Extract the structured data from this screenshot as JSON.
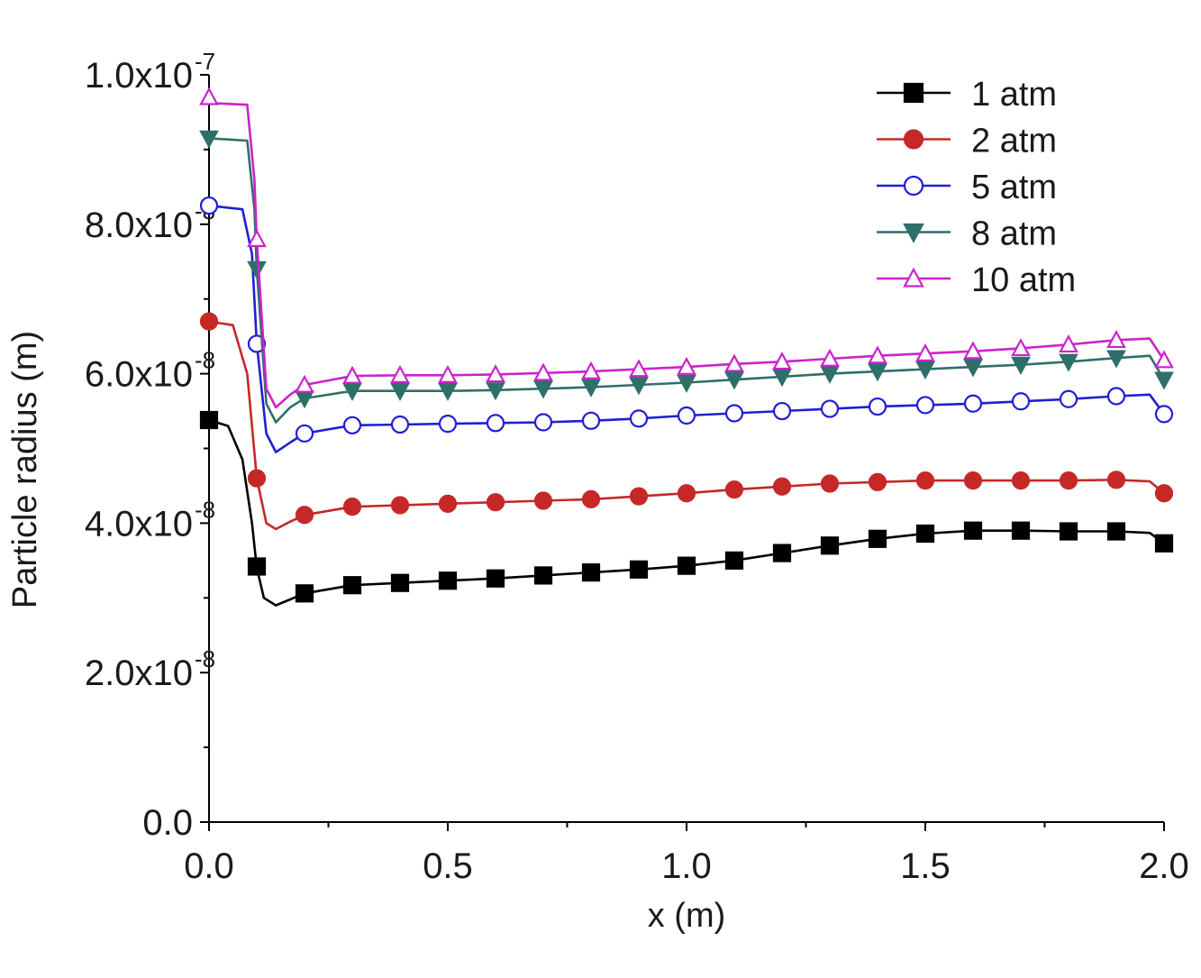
{
  "chart_data": {
    "type": "line",
    "title": "",
    "xlabel": "x (m)",
    "ylabel": "Particle radius (m)",
    "xlim": [
      0.0,
      2.0
    ],
    "ylim": [
      0.0,
      1e-07
    ],
    "x_ticks": [
      {
        "value": 0.0,
        "label": "0.0"
      },
      {
        "value": 0.5,
        "label": "0.5"
      },
      {
        "value": 1.0,
        "label": "1.0"
      },
      {
        "value": 1.5,
        "label": "1.5"
      },
      {
        "value": 2.0,
        "label": "2.0"
      }
    ],
    "y_ticks": [
      {
        "value": 0.0,
        "label": "0.0",
        "exp": ""
      },
      {
        "value": 2e-08,
        "label": "2.0x10",
        "exp": "-8"
      },
      {
        "value": 4e-08,
        "label": "4.0x10",
        "exp": "-8"
      },
      {
        "value": 6e-08,
        "label": "6.0x10",
        "exp": "-8"
      },
      {
        "value": 8e-08,
        "label": "8.0x10",
        "exp": "-8"
      },
      {
        "value": 1e-07,
        "label": "1.0x10",
        "exp": "-7"
      }
    ],
    "grid": false,
    "legend_position": "top-right",
    "series": [
      {
        "name": "1 atm",
        "color": "#000000",
        "marker": "square",
        "filled": true,
        "curve": [
          [
            0,
            5.38e-08
          ],
          [
            0.04,
            5.3e-08
          ],
          [
            0.07,
            4.85e-08
          ],
          [
            0.09,
            4e-08
          ],
          [
            0.1,
            3.4e-08
          ],
          [
            0.115,
            3e-08
          ],
          [
            0.14,
            2.9e-08
          ],
          [
            0.17,
            2.98e-08
          ],
          [
            0.2,
            3.06e-08
          ],
          [
            0.3,
            3.17e-08
          ],
          [
            0.4,
            3.2e-08
          ],
          [
            0.5,
            3.23e-08
          ],
          [
            0.6,
            3.26e-08
          ],
          [
            0.7,
            3.3e-08
          ],
          [
            0.8,
            3.34e-08
          ],
          [
            0.9,
            3.38e-08
          ],
          [
            1.0,
            3.43e-08
          ],
          [
            1.1,
            3.5e-08
          ],
          [
            1.2,
            3.6e-08
          ],
          [
            1.3,
            3.7e-08
          ],
          [
            1.4,
            3.79e-08
          ],
          [
            1.5,
            3.86e-08
          ],
          [
            1.6,
            3.9e-08
          ],
          [
            1.7,
            3.9e-08
          ],
          [
            1.8,
            3.89e-08
          ],
          [
            1.9,
            3.89e-08
          ],
          [
            1.97,
            3.87e-08
          ],
          [
            2.0,
            3.73e-08
          ]
        ],
        "markers_x": [
          0,
          0.1,
          0.2,
          0.3,
          0.4,
          0.5,
          0.6,
          0.7,
          0.8,
          0.9,
          1.0,
          1.1,
          1.2,
          1.3,
          1.4,
          1.5,
          1.6,
          1.7,
          1.8,
          1.9,
          2.0
        ],
        "markers_y": [
          5.38e-08,
          3.42e-08,
          3.06e-08,
          3.17e-08,
          3.2e-08,
          3.23e-08,
          3.26e-08,
          3.3e-08,
          3.34e-08,
          3.38e-08,
          3.43e-08,
          3.5e-08,
          3.6e-08,
          3.7e-08,
          3.79e-08,
          3.86e-08,
          3.9e-08,
          3.9e-08,
          3.89e-08,
          3.89e-08,
          3.73e-08
        ]
      },
      {
        "name": "2 atm",
        "color": "#c62828",
        "marker": "circle",
        "filled": true,
        "curve": [
          [
            0,
            6.7e-08
          ],
          [
            0.05,
            6.65e-08
          ],
          [
            0.08,
            6e-08
          ],
          [
            0.1,
            4.6e-08
          ],
          [
            0.12,
            4e-08
          ],
          [
            0.14,
            3.92e-08
          ],
          [
            0.17,
            4.02e-08
          ],
          [
            0.2,
            4.11e-08
          ],
          [
            0.3,
            4.22e-08
          ],
          [
            0.4,
            4.24e-08
          ],
          [
            0.5,
            4.26e-08
          ],
          [
            0.6,
            4.28e-08
          ],
          [
            0.7,
            4.3e-08
          ],
          [
            0.8,
            4.32e-08
          ],
          [
            0.9,
            4.36e-08
          ],
          [
            1.0,
            4.4e-08
          ],
          [
            1.1,
            4.45e-08
          ],
          [
            1.2,
            4.49e-08
          ],
          [
            1.3,
            4.53e-08
          ],
          [
            1.4,
            4.55e-08
          ],
          [
            1.5,
            4.57e-08
          ],
          [
            1.6,
            4.57e-08
          ],
          [
            1.7,
            4.57e-08
          ],
          [
            1.8,
            4.57e-08
          ],
          [
            1.9,
            4.58e-08
          ],
          [
            1.97,
            4.56e-08
          ],
          [
            2.0,
            4.4e-08
          ]
        ],
        "markers_x": [
          0,
          0.1,
          0.2,
          0.3,
          0.4,
          0.5,
          0.6,
          0.7,
          0.8,
          0.9,
          1.0,
          1.1,
          1.2,
          1.3,
          1.4,
          1.5,
          1.6,
          1.7,
          1.8,
          1.9,
          2.0
        ],
        "markers_y": [
          6.7e-08,
          4.6e-08,
          4.11e-08,
          4.22e-08,
          4.24e-08,
          4.26e-08,
          4.28e-08,
          4.3e-08,
          4.32e-08,
          4.36e-08,
          4.4e-08,
          4.45e-08,
          4.49e-08,
          4.53e-08,
          4.55e-08,
          4.57e-08,
          4.57e-08,
          4.57e-08,
          4.57e-08,
          4.58e-08,
          4.4e-08
        ]
      },
      {
        "name": "5 atm",
        "color": "#1f1fd6",
        "marker": "circle",
        "filled": false,
        "curve": [
          [
            0,
            8.25e-08
          ],
          [
            0.07,
            8.2e-08
          ],
          [
            0.09,
            7.6e-08
          ],
          [
            0.1,
            6.4e-08
          ],
          [
            0.12,
            5.2e-08
          ],
          [
            0.14,
            4.95e-08
          ],
          [
            0.17,
            5.08e-08
          ],
          [
            0.2,
            5.2e-08
          ],
          [
            0.3,
            5.31e-08
          ],
          [
            0.4,
            5.32e-08
          ],
          [
            0.5,
            5.33e-08
          ],
          [
            0.6,
            5.34e-08
          ],
          [
            0.7,
            5.35e-08
          ],
          [
            0.8,
            5.37e-08
          ],
          [
            0.9,
            5.4e-08
          ],
          [
            1.0,
            5.44e-08
          ],
          [
            1.1,
            5.47e-08
          ],
          [
            1.2,
            5.5e-08
          ],
          [
            1.3,
            5.53e-08
          ],
          [
            1.4,
            5.56e-08
          ],
          [
            1.5,
            5.58e-08
          ],
          [
            1.6,
            5.6e-08
          ],
          [
            1.7,
            5.63e-08
          ],
          [
            1.8,
            5.66e-08
          ],
          [
            1.9,
            5.7e-08
          ],
          [
            1.97,
            5.72e-08
          ],
          [
            2.0,
            5.46e-08
          ]
        ],
        "markers_x": [
          0,
          0.1,
          0.2,
          0.3,
          0.4,
          0.5,
          0.6,
          0.7,
          0.8,
          0.9,
          1.0,
          1.1,
          1.2,
          1.3,
          1.4,
          1.5,
          1.6,
          1.7,
          1.8,
          1.9,
          2.0
        ],
        "markers_y": [
          8.25e-08,
          6.4e-08,
          5.2e-08,
          5.31e-08,
          5.32e-08,
          5.33e-08,
          5.34e-08,
          5.35e-08,
          5.37e-08,
          5.4e-08,
          5.44e-08,
          5.47e-08,
          5.5e-08,
          5.53e-08,
          5.56e-08,
          5.58e-08,
          5.6e-08,
          5.63e-08,
          5.66e-08,
          5.7e-08,
          5.46e-08
        ]
      },
      {
        "name": "8 atm",
        "color": "#2f6f6a",
        "marker": "triangle-down",
        "filled": true,
        "curve": [
          [
            0,
            9.15e-08
          ],
          [
            0.08,
            9.12e-08
          ],
          [
            0.095,
            8.2e-08
          ],
          [
            0.1,
            7.4e-08
          ],
          [
            0.12,
            5.6e-08
          ],
          [
            0.14,
            5.35e-08
          ],
          [
            0.17,
            5.55e-08
          ],
          [
            0.2,
            5.67e-08
          ],
          [
            0.3,
            5.77e-08
          ],
          [
            0.4,
            5.77e-08
          ],
          [
            0.5,
            5.77e-08
          ],
          [
            0.6,
            5.78e-08
          ],
          [
            0.7,
            5.8e-08
          ],
          [
            0.8,
            5.82e-08
          ],
          [
            0.9,
            5.85e-08
          ],
          [
            1.0,
            5.88e-08
          ],
          [
            1.1,
            5.92e-08
          ],
          [
            1.2,
            5.96e-08
          ],
          [
            1.3,
            6e-08
          ],
          [
            1.4,
            6.03e-08
          ],
          [
            1.5,
            6.06e-08
          ],
          [
            1.6,
            6.09e-08
          ],
          [
            1.7,
            6.12e-08
          ],
          [
            1.8,
            6.16e-08
          ],
          [
            1.9,
            6.21e-08
          ],
          [
            1.97,
            6.24e-08
          ],
          [
            2.0,
            5.92e-08
          ]
        ],
        "markers_x": [
          0,
          0.1,
          0.2,
          0.3,
          0.4,
          0.5,
          0.6,
          0.7,
          0.8,
          0.9,
          1.0,
          1.1,
          1.2,
          1.3,
          1.4,
          1.5,
          1.6,
          1.7,
          1.8,
          1.9,
          2.0
        ],
        "markers_y": [
          9.15e-08,
          7.4e-08,
          5.67e-08,
          5.77e-08,
          5.77e-08,
          5.77e-08,
          5.78e-08,
          5.8e-08,
          5.82e-08,
          5.85e-08,
          5.88e-08,
          5.92e-08,
          5.96e-08,
          6e-08,
          6.03e-08,
          6.06e-08,
          6.09e-08,
          6.12e-08,
          6.16e-08,
          6.21e-08,
          5.92e-08
        ]
      },
      {
        "name": "10 atm",
        "color": "#cc22cc",
        "marker": "triangle-up",
        "filled": false,
        "curve": [
          [
            0,
            9.7e-08
          ],
          [
            0.01,
            9.62e-08
          ],
          [
            0.08,
            9.6e-08
          ],
          [
            0.095,
            8.6e-08
          ],
          [
            0.1,
            7.8e-08
          ],
          [
            0.12,
            5.8e-08
          ],
          [
            0.14,
            5.55e-08
          ],
          [
            0.17,
            5.72e-08
          ],
          [
            0.2,
            5.85e-08
          ],
          [
            0.3,
            5.97e-08
          ],
          [
            0.4,
            5.98e-08
          ],
          [
            0.5,
            5.98e-08
          ],
          [
            0.6,
            5.99e-08
          ],
          [
            0.7,
            6.01e-08
          ],
          [
            0.8,
            6.03e-08
          ],
          [
            0.9,
            6.06e-08
          ],
          [
            1.0,
            6.09e-08
          ],
          [
            1.1,
            6.13e-08
          ],
          [
            1.2,
            6.16e-08
          ],
          [
            1.3,
            6.2e-08
          ],
          [
            1.4,
            6.24e-08
          ],
          [
            1.5,
            6.27e-08
          ],
          [
            1.6,
            6.3e-08
          ],
          [
            1.7,
            6.34e-08
          ],
          [
            1.8,
            6.39e-08
          ],
          [
            1.9,
            6.45e-08
          ],
          [
            1.97,
            6.47e-08
          ],
          [
            2.0,
            6.18e-08
          ]
        ],
        "markers_x": [
          0,
          0.1,
          0.2,
          0.3,
          0.4,
          0.5,
          0.6,
          0.7,
          0.8,
          0.9,
          1.0,
          1.1,
          1.2,
          1.3,
          1.4,
          1.5,
          1.6,
          1.7,
          1.8,
          1.9,
          2.0
        ],
        "markers_y": [
          9.7e-08,
          7.8e-08,
          5.85e-08,
          5.97e-08,
          5.98e-08,
          5.98e-08,
          5.99e-08,
          6.01e-08,
          6.03e-08,
          6.06e-08,
          6.09e-08,
          6.13e-08,
          6.16e-08,
          6.2e-08,
          6.24e-08,
          6.27e-08,
          6.3e-08,
          6.34e-08,
          6.39e-08,
          6.45e-08,
          6.18e-08
        ]
      }
    ]
  }
}
